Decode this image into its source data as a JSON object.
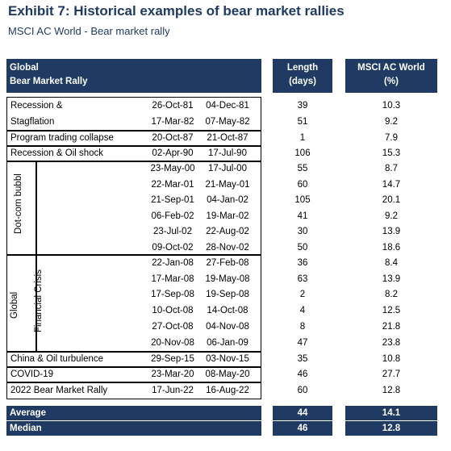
{
  "title": "Exhibit 7: Historical examples of bear market rallies",
  "subtitle": "MSCI AC World - Bear market rally",
  "header": {
    "col1_line1": "Global",
    "col1_line2": "Bear Market Rally",
    "length_line1": "Length",
    "length_line2": "(days)",
    "msci_line1": "MSCI AC World",
    "msci_line2": "(%)"
  },
  "groups": {
    "dotcom": "Dot-com bubbl",
    "gfc_line1": "Global",
    "gfc_line2": "Financial Crisis"
  },
  "rows": [
    {
      "label": "Recession &",
      "start": "26-Oct-81",
      "end": "04-Dec-81",
      "length": "39",
      "msci": "10.3"
    },
    {
      "label": "Stagflation",
      "start": "17-Mar-82",
      "end": "07-May-82",
      "length": "51",
      "msci": "9.2"
    },
    {
      "label": "Program trading collapse",
      "start": "20-Oct-87",
      "end": "21-Oct-87",
      "length": "1",
      "msci": "7.9"
    },
    {
      "label": "Recession & Oil shock",
      "start": "02-Apr-90",
      "end": "17-Jul-90",
      "length": "106",
      "msci": "15.3"
    },
    {
      "label": "",
      "start": "23-May-00",
      "end": "17-Jul-00",
      "length": "55",
      "msci": "8.7"
    },
    {
      "label": "",
      "start": "22-Mar-01",
      "end": "21-May-01",
      "length": "60",
      "msci": "14.7"
    },
    {
      "label": "",
      "start": "21-Sep-01",
      "end": "04-Jan-02",
      "length": "105",
      "msci": "20.1"
    },
    {
      "label": "",
      "start": "06-Feb-02",
      "end": "19-Mar-02",
      "length": "41",
      "msci": "9.2"
    },
    {
      "label": "",
      "start": "23-Jul-02",
      "end": "22-Aug-02",
      "length": "30",
      "msci": "13.9"
    },
    {
      "label": "",
      "start": "09-Oct-02",
      "end": "28-Nov-02",
      "length": "50",
      "msci": "18.6"
    },
    {
      "label": "",
      "start": "22-Jan-08",
      "end": "27-Feb-08",
      "length": "36",
      "msci": "8.4"
    },
    {
      "label": "",
      "start": "17-Mar-08",
      "end": "19-May-08",
      "length": "63",
      "msci": "13.9"
    },
    {
      "label": "",
      "start": "17-Sep-08",
      "end": "19-Sep-08",
      "length": "2",
      "msci": "8.2"
    },
    {
      "label": "",
      "start": "10-Oct-08",
      "end": "14-Oct-08",
      "length": "4",
      "msci": "12.5"
    },
    {
      "label": "",
      "start": "27-Oct-08",
      "end": "04-Nov-08",
      "length": "8",
      "msci": "21.8"
    },
    {
      "label": "",
      "start": "20-Nov-08",
      "end": "06-Jan-09",
      "length": "47",
      "msci": "23.8"
    },
    {
      "label": "China & Oil turbulence",
      "start": "29-Sep-15",
      "end": "03-Nov-15",
      "length": "35",
      "msci": "10.8"
    },
    {
      "label": "COVID-19",
      "start": "23-Mar-20",
      "end": "08-May-20",
      "length": "46",
      "msci": "27.7"
    },
    {
      "label": "2022 Bear Market Rally",
      "start": "17-Jun-22",
      "end": "16-Aug-22",
      "length": "60",
      "msci": "12.8"
    }
  ],
  "footer": [
    {
      "label": "Average",
      "length": "44",
      "msci": "14.1"
    },
    {
      "label": "Median",
      "length": "46",
      "msci": "12.8"
    }
  ],
  "colors": {
    "navy": "#1f3b63"
  }
}
